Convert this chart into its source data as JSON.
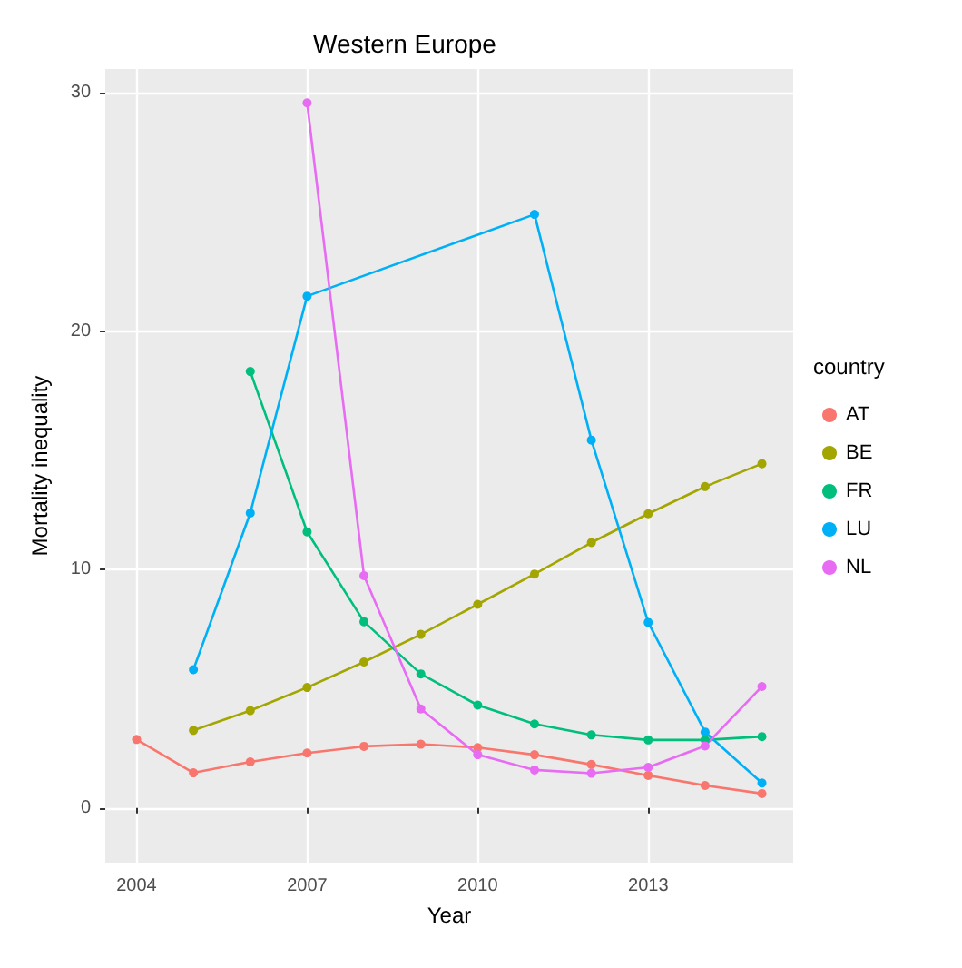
{
  "chart_data": {
    "type": "line",
    "title": "Western Europe",
    "xlabel": "Year",
    "ylabel": "Mortality inequality",
    "legend_title": "country",
    "legend": "right",
    "grid": true,
    "marker": "circle",
    "line_style": "solid",
    "xlim": [
      2003.45,
      2015.55
    ],
    "xticks": [
      2004,
      2007,
      2010,
      2013
    ],
    "ylim": [
      -2.3,
      31
    ],
    "yticks": [
      0,
      10,
      20,
      30
    ],
    "series": [
      {
        "name": "AT",
        "color": "#f8766d",
        "x": [
          2004,
          2005,
          2006,
          2007,
          2008,
          2009,
          2010,
          2011,
          2012,
          2013,
          2014,
          2015
        ],
        "values": [
          2.87,
          1.47,
          1.93,
          2.3,
          2.58,
          2.67,
          2.53,
          2.23,
          1.82,
          1.36,
          0.94,
          0.6
        ]
      },
      {
        "name": "BE",
        "color": "#a3a500",
        "x": [
          2005,
          2006,
          2007,
          2008,
          2009,
          2010,
          2011,
          2012,
          2013,
          2014,
          2015
        ],
        "values": [
          3.25,
          4.08,
          5.05,
          6.12,
          7.28,
          8.54,
          9.81,
          11.13,
          12.34,
          13.48,
          14.44
        ]
      },
      {
        "name": "FR",
        "color": "#00bf7d",
        "x": [
          2006,
          2007,
          2008,
          2009,
          2010,
          2011,
          2012,
          2013,
          2014,
          2015
        ],
        "values": [
          18.31,
          11.58,
          7.81,
          5.62,
          4.31,
          3.52,
          3.06,
          2.85,
          2.85,
          2.99
        ]
      },
      {
        "name": "LU",
        "color": "#00b0f6",
        "x": [
          2005,
          2006,
          2007,
          2011,
          2012,
          2013,
          2014,
          2015
        ],
        "values": [
          5.8,
          12.37,
          21.47,
          24.9,
          15.43,
          7.78,
          3.18,
          1.04
        ]
      },
      {
        "name": "NL",
        "color": "#e76bf3",
        "x": [
          2007,
          2008,
          2009,
          2010,
          2011,
          2012,
          2013,
          2014,
          2015
        ],
        "values": [
          29.58,
          9.74,
          4.15,
          2.23,
          1.59,
          1.45,
          1.7,
          2.6,
          5.09
        ]
      }
    ]
  }
}
